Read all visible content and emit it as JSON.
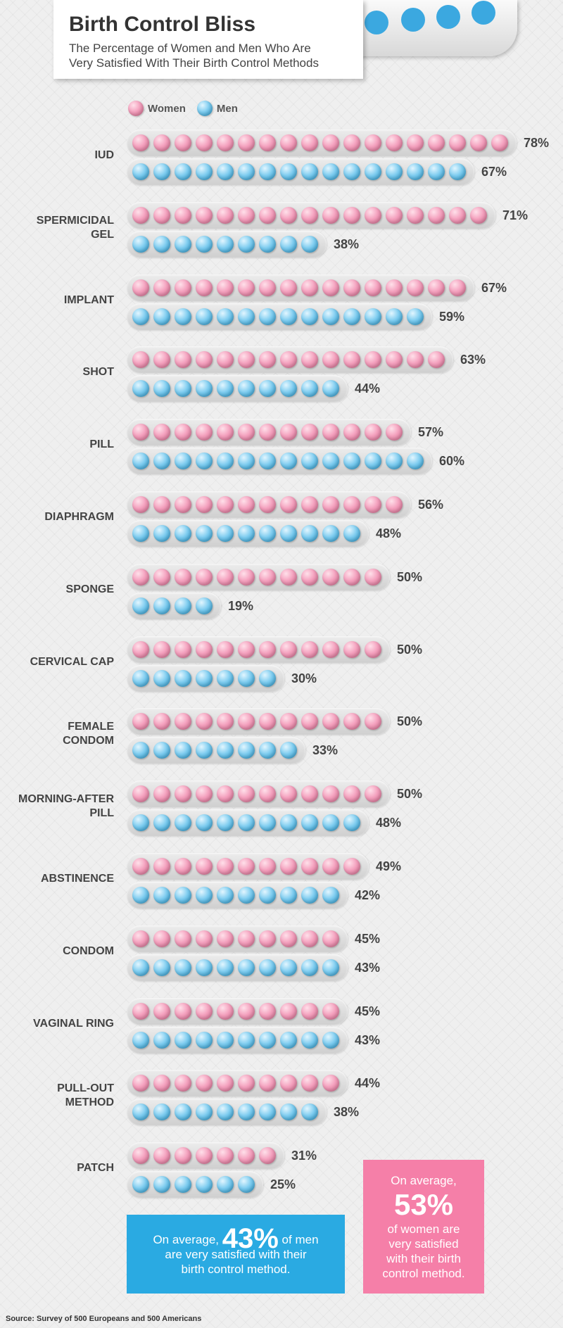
{
  "title": "Birth Control Bliss",
  "subtitle_line1": "The Percentage of Women and Men Who Are",
  "subtitle_line2": "Very Satisfied With Their Birth Control Methods",
  "legend": {
    "women": "Women",
    "men": "Men"
  },
  "colors": {
    "women": "#f4a1be",
    "men": "#7fcdf0",
    "women_box": "#f57fa8",
    "men_box": "#2aaae2"
  },
  "chart_data": {
    "type": "bar",
    "title": "Birth Control Bliss",
    "categories": [
      "IUD",
      "SPERMICIDAL\nGEL",
      "IMPLANT",
      "SHOT",
      "PILL",
      "DIAPHRAGM",
      "SPONGE",
      "CERVICAL CAP",
      "FEMALE\nCONDOM",
      "MORNING-AFTER\nPILL",
      "ABSTINENCE",
      "CONDOM",
      "VAGINAL RING",
      "PULL-OUT\nMETHOD",
      "PATCH"
    ],
    "series": [
      {
        "name": "Women",
        "values": [
          78,
          71,
          67,
          63,
          57,
          56,
          50,
          50,
          50,
          50,
          49,
          45,
          45,
          44,
          31
        ]
      },
      {
        "name": "Men",
        "values": [
          67,
          38,
          59,
          44,
          60,
          48,
          19,
          30,
          33,
          48,
          42,
          43,
          43,
          38,
          25
        ]
      }
    ],
    "value_suffix": "%"
  },
  "men_box": {
    "prefix": "On average,",
    "value": "43%",
    "suffix": "of men",
    "line2": "are very satisfied with their",
    "line3": "birth control method."
  },
  "women_box": {
    "line1": "On average,",
    "value": "53%",
    "line2": "of women are",
    "line3": "very satisfied",
    "line4": "with their birth",
    "line5": "control method."
  },
  "source": "Source: Survey of 500 Europeans and 500 Americans"
}
